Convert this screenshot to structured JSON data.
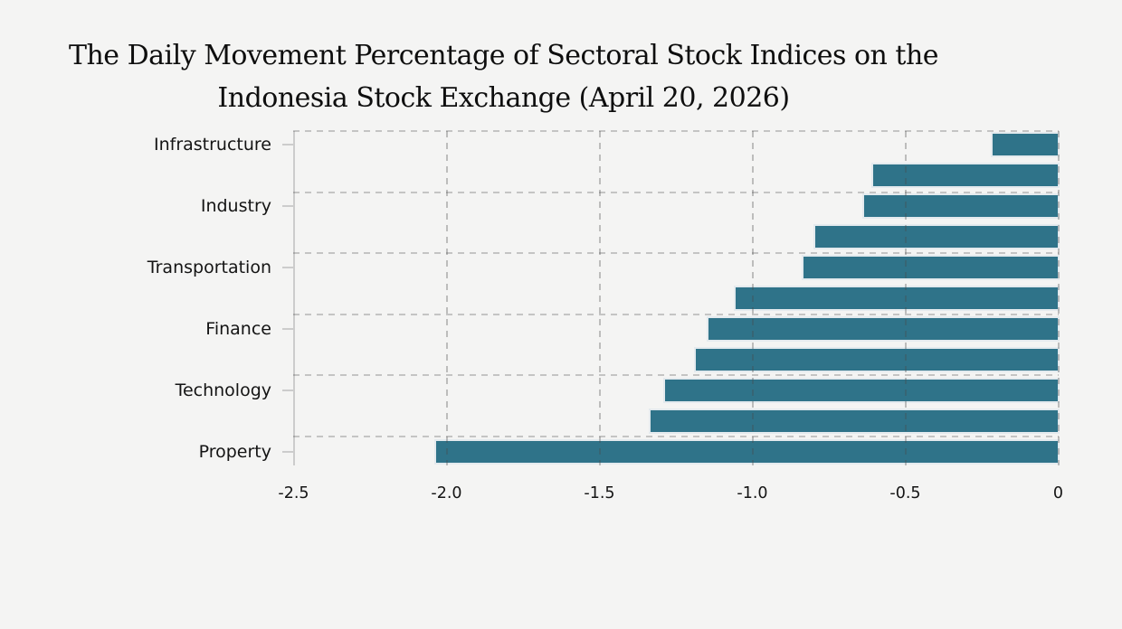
{
  "title_lines": [
    "The Daily Movement Percentage of Sectoral Stock Indices on the",
    "Indonesia Stock Exchange (April 20, 2026)"
  ],
  "chart_data": {
    "type": "bar",
    "orientation": "horizontal",
    "title": "The Daily Movement Percentage of Sectoral Stock Indices on the Indonesia Stock Exchange (April 20, 2026)",
    "categories": [
      "Infrastructure",
      "",
      "Industry",
      "",
      "Transportation",
      "",
      "Finance",
      "",
      "Technology",
      "",
      "Property"
    ],
    "values": [
      -0.22,
      -0.61,
      -0.64,
      -0.8,
      -0.84,
      -1.06,
      -1.15,
      -1.19,
      -1.29,
      -1.34,
      -2.04
    ],
    "labeled_categories": [
      "Infrastructure",
      "Industry",
      "Transportation",
      "Finance",
      "Technology",
      "Property"
    ],
    "xlabel": "",
    "ylabel": "",
    "xlim": [
      -2.5,
      0
    ],
    "x_tick_labels": [
      "-2.5",
      "-2.0",
      "-1.5",
      "-1.0",
      "-0.5",
      "0"
    ],
    "x_tick_values": [
      -2.5,
      -2.0,
      -1.5,
      -1.0,
      -0.5,
      0
    ],
    "grid": "dashed",
    "legend": "none",
    "bar_color": "#2F7389",
    "bar_edge_color": "#E4EAEE",
    "background_color": "#F4F4F3",
    "axis_color": "#CCCCCC",
    "text_color": "#141414"
  }
}
